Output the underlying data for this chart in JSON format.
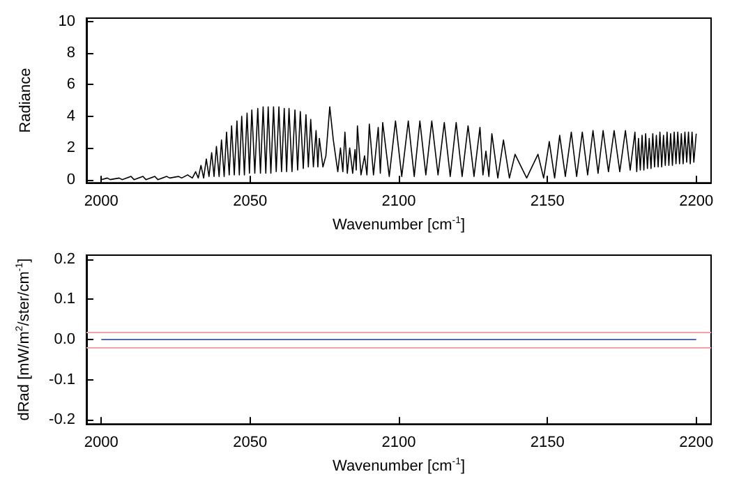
{
  "chart_data": [
    {
      "type": "line",
      "xlabel": "Wavenumber [cm$^{-1}$]",
      "ylabel": "Radiance",
      "xlim": [
        1995,
        2205
      ],
      "ylim": [
        -0.2,
        10.2
      ],
      "xticks": [
        2000,
        2050,
        2100,
        2150,
        2200
      ],
      "yticks": [
        0,
        2,
        4,
        6,
        8,
        10
      ],
      "grid": false,
      "marker": "none",
      "line_style": "solid",
      "series": [
        {
          "color": "#000000",
          "x": [
            2000,
            2002,
            2003,
            2006,
            2007,
            2010,
            2011,
            2014,
            2015,
            2018,
            2019,
            2022,
            2023,
            2026,
            2027,
            2029,
            2030.6,
            2031.7,
            2032.6,
            2033.5,
            2034.4,
            2035.3,
            2036.2,
            2037.1,
            2037.9,
            2038.7,
            2039.6,
            2040.4,
            2041.3,
            2042.1,
            2043.0,
            2043.8,
            2044.7,
            2045.6,
            2046.4,
            2047.2,
            2048.1,
            2049.0,
            2049.8,
            2050.6,
            2051.6,
            2052.6,
            2053.5,
            2054.4,
            2055.3,
            2056.1,
            2057.0,
            2057.9,
            2058.8,
            2059.7,
            2060.6,
            2061.5,
            2062.3,
            2063.1,
            2064.1,
            2065.1,
            2066.0,
            2066.9,
            2067.9,
            2068.8,
            2069.6,
            2070.4,
            2071.3,
            2072.2,
            2072.8,
            2073.3,
            2074.5,
            2075.5,
            2076.8,
            2078,
            2079.5,
            2080.4,
            2081.2,
            2081.9,
            2082.7,
            2083.5,
            2084.5,
            2085.3,
            2085.7,
            2086.1,
            2087.3,
            2088.5,
            2089.3,
            2090.1,
            2091.5,
            2093.1,
            2093.8,
            2094.6,
            2096.8,
            2098.9,
            2101,
            2103.2,
            2105.2,
            2107.1,
            2109.1,
            2111.1,
            2113.2,
            2115.3,
            2117.3,
            2119.3,
            2121.3,
            2123.3,
            2125.3,
            2127.3,
            2128.3,
            2129.3,
            2130.3,
            2131.3,
            2133.3,
            2135.2,
            2137.2,
            2139.1,
            2143,
            2146.8,
            2148.7,
            2150.6,
            2152.4,
            2154.1,
            2156,
            2158,
            2159.8,
            2161.7,
            2163.5,
            2165.3,
            2167,
            2168.7,
            2170.5,
            2172.4,
            2174.3,
            2176.2,
            2177.8,
            2179.4,
            2180.0,
            2180.6,
            2181.2,
            2181.8,
            2182.4,
            2183.0,
            2183.6,
            2184.2,
            2184.8,
            2185.4,
            2186.0,
            2186.6,
            2187.2,
            2187.8,
            2188.4,
            2189.0,
            2189.6,
            2190.2,
            2190.8,
            2191.4,
            2192.0,
            2192.6,
            2193.2,
            2193.8,
            2194.4,
            2195.0,
            2195.6,
            2196.2,
            2196.8,
            2197.4,
            2198.0,
            2198.6,
            2199.2,
            2200
          ],
          "values": [
            0.0,
            0.1,
            0.0,
            0.1,
            0.0,
            0.2,
            0.0,
            0.2,
            0.0,
            0.2,
            0.0,
            0.2,
            0.1,
            0.2,
            0.1,
            0.3,
            0.1,
            0.5,
            0.1,
            0.9,
            0.1,
            1.3,
            0.2,
            1.7,
            0.2,
            2.1,
            0.2,
            2.5,
            0.2,
            3.0,
            0.3,
            3.4,
            0.3,
            3.7,
            0.3,
            4.0,
            0.3,
            4.2,
            0.4,
            4.4,
            0.4,
            4.5,
            0.4,
            4.6,
            0.4,
            4.6,
            0.4,
            4.6,
            0.5,
            4.6,
            0.5,
            4.5,
            0.5,
            4.5,
            0.5,
            4.4,
            0.6,
            4.3,
            0.7,
            4.1,
            0.8,
            3.8,
            0.8,
            3.1,
            0.8,
            2.6,
            0.8,
            1.5,
            4.6,
            2.5,
            0.5,
            2.0,
            0.5,
            3.0,
            0.4,
            2.0,
            0.4,
            1.9,
            0.6,
            3.4,
            0.3,
            1.5,
            0.3,
            3.5,
            0.3,
            3.3,
            0.4,
            3.6,
            0.2,
            3.7,
            0.2,
            3.7,
            0.2,
            3.7,
            0.3,
            3.7,
            0.3,
            3.6,
            0.2,
            3.6,
            0.2,
            3.4,
            0.2,
            3.3,
            0.3,
            1.8,
            0.2,
            2.9,
            0.1,
            2.5,
            0.1,
            1.6,
            0.1,
            1.6,
            0.1,
            2.4,
            0.1,
            2.8,
            0.2,
            3.0,
            0.2,
            3.0,
            0.3,
            3.1,
            0.4,
            3.1,
            0.5,
            3.1,
            0.5,
            3.1,
            0.6,
            3.0,
            0.5,
            2.6,
            0.6,
            2.8,
            0.6,
            2.9,
            0.7,
            2.6,
            0.7,
            2.9,
            0.8,
            2.8,
            0.8,
            3.0,
            0.8,
            2.8,
            0.9,
            3.0,
            0.9,
            2.9,
            0.9,
            3.0,
            1.0,
            3.0,
            1.0,
            2.9,
            1.0,
            3.0,
            1.1,
            3.0,
            1.0,
            3.0,
            1.1,
            2.9
          ]
        }
      ]
    },
    {
      "type": "line",
      "xlabel": "Wavenumber [cm$^{-1}$]",
      "ylabel": "dRad [mW/m$^{2}$/ster/cm$^{-1}$]",
      "xlim": [
        1995,
        2205
      ],
      "ylim": [
        -0.21,
        0.21
      ],
      "xticks": [
        2000,
        2050,
        2100,
        2150,
        2200
      ],
      "yticks": [
        {
          "value": -0.2,
          "label": "-0.2"
        },
        {
          "value": -0.1,
          "label": "-0.1"
        },
        {
          "value": 0,
          "label": "0.0"
        },
        {
          "value": 0.1,
          "label": "0.1"
        },
        {
          "value": 0.2,
          "label": "0.2"
        }
      ],
      "grid": false,
      "marker": "none",
      "line_style": "solid",
      "series": [
        {
          "color": "#2f55b8",
          "x": [
            2000,
            2200
          ],
          "values": [
            0,
            0
          ]
        }
      ],
      "ref_lines": [
        {
          "axis": "y",
          "value": 0.02,
          "color": "#f4a0a0"
        },
        {
          "axis": "y",
          "value": -0.02,
          "color": "#f4a0a0"
        }
      ]
    }
  ]
}
